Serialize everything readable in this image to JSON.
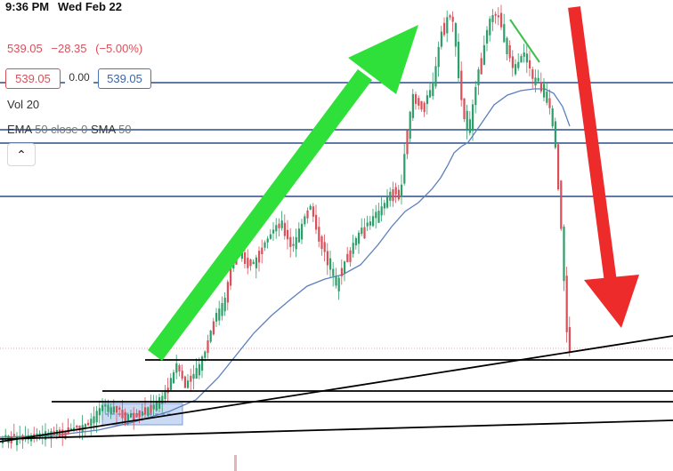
{
  "status_bar": {
    "time": "9:36 PM",
    "date": "Wed Feb 22"
  },
  "quote": {
    "price": "539.05",
    "change": "−28.35",
    "change_percent": "(−5.00%)",
    "bid": "539.05",
    "spread": "0.00",
    "ask": "539.05"
  },
  "indicators": {
    "volume_label": "Vol",
    "volume_value": "20",
    "ema_label": "EMA",
    "ema_params": "50 close 0",
    "sma_label": "SMA",
    "sma_params": "50"
  },
  "controls": {
    "collapse_icon": "chevron-up-icon",
    "collapse_glyph": "⌃"
  },
  "colors": {
    "up_candle": "#2e9e6a",
    "down_candle": "#d9505a",
    "sma_line": "#5b7fbf",
    "horizontal_levels": "#2c4f8a",
    "support_lines": "#000000",
    "green_arrow": "#2fe03a",
    "red_arrow": "#ee2b2b",
    "consolidation_box": "#a9c1ec"
  }
}
